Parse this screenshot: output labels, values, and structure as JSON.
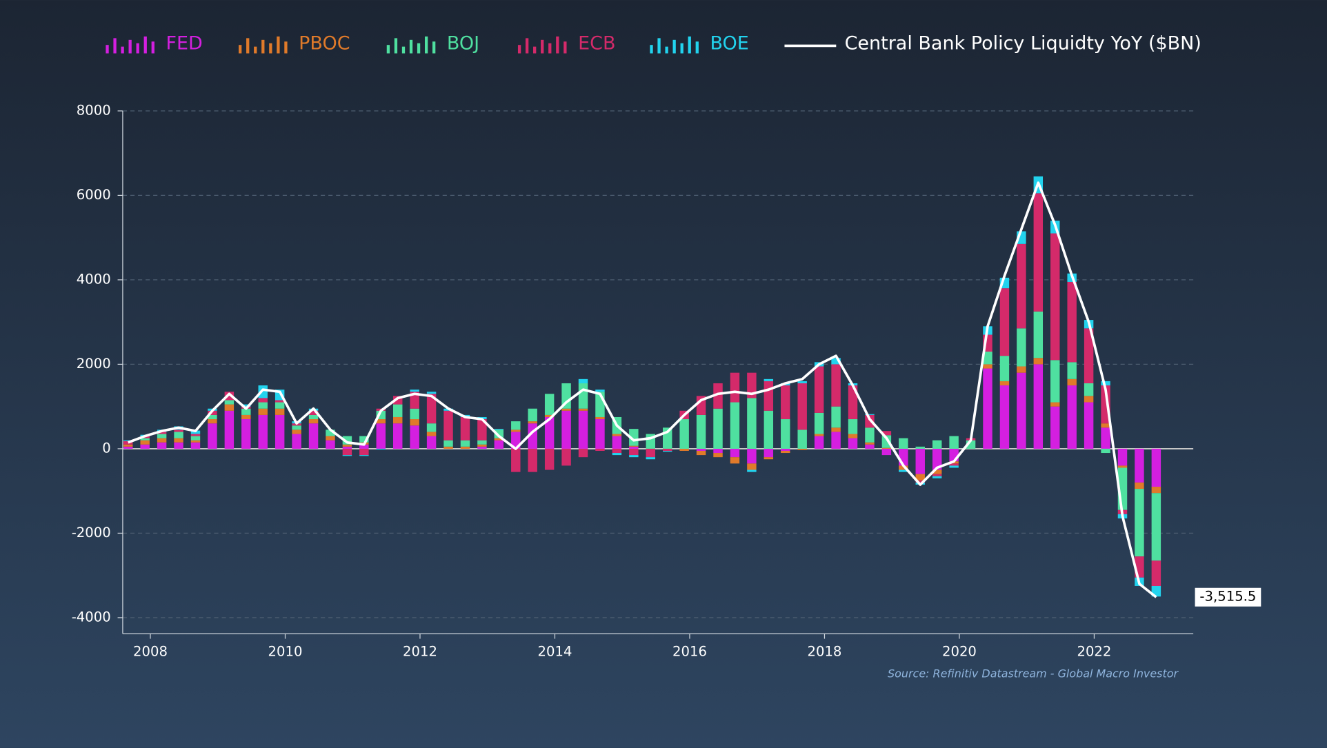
{
  "chart_data": {
    "type": "stacked_bar_line",
    "source": "Source: Refinitiv Datastream - Global Macro Investor",
    "x": [
      2007.67,
      2007.92,
      2008.17,
      2008.42,
      2008.67,
      2008.92,
      2009.17,
      2009.42,
      2009.67,
      2009.92,
      2010.17,
      2010.42,
      2010.67,
      2010.92,
      2011.17,
      2011.42,
      2011.67,
      2011.92,
      2012.17,
      2012.42,
      2012.67,
      2012.92,
      2013.17,
      2013.42,
      2013.67,
      2013.92,
      2014.17,
      2014.42,
      2014.67,
      2014.92,
      2015.17,
      2015.42,
      2015.67,
      2015.92,
      2016.17,
      2016.42,
      2016.67,
      2016.92,
      2017.17,
      2017.42,
      2017.67,
      2017.92,
      2018.17,
      2018.42,
      2018.67,
      2018.92,
      2019.17,
      2019.42,
      2019.67,
      2019.92,
      2020.17,
      2020.42,
      2020.67,
      2020.92,
      2021.17,
      2021.42,
      2021.67,
      2021.92,
      2022.17,
      2022.42,
      2022.67,
      2022.92
    ],
    "xlim": [
      2007.59,
      2023.47
    ],
    "xticks": [
      2008,
      2010,
      2012,
      2014,
      2016,
      2018,
      2020,
      2022
    ],
    "ylim": [
      -4380,
      8000
    ],
    "yticks": [
      -4000,
      -2000,
      0,
      2000,
      4000,
      6000,
      8000
    ],
    "grid": true,
    "series": [
      {
        "name": "FED",
        "color": "#d41fe0",
        "values": [
          50,
          100,
          150,
          150,
          150,
          600,
          900,
          700,
          800,
          800,
          350,
          600,
          200,
          50,
          100,
          600,
          600,
          550,
          300,
          0,
          0,
          50,
          200,
          400,
          600,
          750,
          900,
          900,
          700,
          300,
          50,
          0,
          0,
          0,
          -50,
          -100,
          -200,
          -350,
          -200,
          -50,
          0,
          300,
          400,
          250,
          100,
          -150,
          -400,
          -600,
          -500,
          -300,
          0,
          1900,
          1500,
          1800,
          2000,
          1000,
          1500,
          1100,
          500,
          -400,
          -800,
          -900
        ]
      },
      {
        "name": "PBOC",
        "color": "#e07a2a",
        "values": [
          50,
          100,
          100,
          100,
          50,
          100,
          150,
          100,
          150,
          150,
          100,
          100,
          100,
          50,
          50,
          100,
          150,
          150,
          100,
          50,
          50,
          50,
          50,
          50,
          50,
          50,
          50,
          50,
          50,
          50,
          20,
          0,
          0,
          -50,
          -100,
          -100,
          -150,
          -150,
          -50,
          -50,
          -30,
          50,
          100,
          100,
          50,
          20,
          -100,
          -150,
          -100,
          -50,
          0,
          100,
          100,
          150,
          150,
          100,
          150,
          150,
          100,
          -50,
          -150,
          -150
        ]
      },
      {
        "name": "BOJ",
        "color": "#4fe0a0",
        "values": [
          0,
          50,
          100,
          150,
          100,
          100,
          100,
          150,
          150,
          150,
          100,
          100,
          150,
          200,
          150,
          200,
          300,
          250,
          200,
          150,
          150,
          100,
          200,
          200,
          300,
          500,
          600,
          600,
          600,
          400,
          400,
          350,
          500,
          700,
          800,
          950,
          1100,
          1200,
          900,
          700,
          450,
          500,
          500,
          350,
          350,
          300,
          250,
          50,
          200,
          300,
          200,
          300,
          600,
          900,
          1100,
          1000,
          400,
          300,
          -100,
          -1000,
          -1600,
          -1600
        ]
      },
      {
        "name": "ECB",
        "color": "#d42a6a",
        "values": [
          80,
          50,
          50,
          50,
          50,
          100,
          200,
          50,
          100,
          50,
          50,
          100,
          0,
          -150,
          -150,
          50,
          200,
          400,
          700,
          700,
          550,
          500,
          0,
          -550,
          -550,
          -500,
          -400,
          -200,
          -50,
          -100,
          -150,
          -200,
          -50,
          200,
          450,
          600,
          700,
          600,
          700,
          800,
          1100,
          1100,
          1000,
          800,
          300,
          100,
          0,
          -50,
          -50,
          -50,
          50,
          400,
          1600,
          2000,
          2800,
          3000,
          1900,
          1300,
          900,
          -100,
          -500,
          -600
        ]
      },
      {
        "name": "BOE",
        "color": "#22d3ee",
        "values": [
          20,
          30,
          50,
          80,
          80,
          50,
          0,
          50,
          300,
          250,
          50,
          50,
          0,
          -20,
          -20,
          -20,
          0,
          50,
          50,
          50,
          50,
          50,
          20,
          0,
          0,
          0,
          0,
          100,
          50,
          -50,
          -50,
          -50,
          -20,
          0,
          0,
          0,
          0,
          -50,
          50,
          50,
          50,
          100,
          150,
          50,
          20,
          0,
          -50,
          -50,
          -50,
          -50,
          0,
          200,
          250,
          300,
          400,
          300,
          200,
          200,
          100,
          -100,
          -200,
          -250
        ]
      }
    ],
    "line": {
      "name": "Central Bank Policy Liquidty YoY ($BN)",
      "color": "#ffffff",
      "values": [
        150,
        300,
        420,
        500,
        420,
        900,
        1300,
        950,
        1400,
        1350,
        600,
        950,
        450,
        150,
        100,
        900,
        1200,
        1300,
        1250,
        950,
        750,
        700,
        300,
        0,
        400,
        700,
        1100,
        1400,
        1300,
        550,
        200,
        250,
        400,
        800,
        1150,
        1300,
        1350,
        1300,
        1400,
        1550,
        1650,
        2000,
        2200,
        1500,
        700,
        250,
        -400,
        -850,
        -450,
        -300,
        200,
        2900,
        4100,
        5200,
        6300,
        5300,
        4100,
        3000,
        1400,
        -1600,
        -3200,
        -3515.5
      ],
      "value_labels": [
        null,
        null,
        null,
        null,
        null,
        null,
        null,
        null,
        null,
        null,
        null,
        null,
        null,
        null,
        null,
        null,
        null,
        null,
        null,
        null,
        null,
        null,
        null,
        null,
        null,
        null,
        null,
        null,
        null,
        null,
        null,
        null,
        null,
        null,
        null,
        null,
        null,
        null,
        null,
        null,
        null,
        null,
        null,
        null,
        null,
        null,
        null,
        null,
        null,
        null,
        null,
        null,
        null,
        null,
        null,
        null,
        null,
        null,
        null,
        null,
        null,
        "-3,515.5"
      ]
    }
  }
}
